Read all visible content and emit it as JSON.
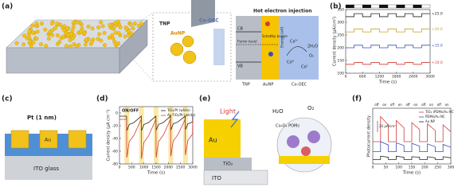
{
  "panels": [
    "(a)",
    "(b)",
    "(c)",
    "(d)",
    "(e)",
    "(f)"
  ],
  "diagram_a": {
    "inset_tnp": "TNP",
    "inset_aunp": "AuNP",
    "inset_cooec": "Co-OEC",
    "title": "Hot electron injection",
    "cb": "CB",
    "fermi": "Fermi level",
    "vb": "VB",
    "schottky": "Schottky barrier",
    "energy": "Energy (eV)",
    "co4": "Coᴵⱽ",
    "co3": "Coᴵᴵᴵ",
    "co2": "Coᴵᴵ",
    "water": "2H₂O",
    "oxygen": "O₂",
    "region_tnp": "TNP",
    "region_aunp": "AuNP",
    "region_cooec": "Co-OEC"
  },
  "diagram_c": {
    "pt": "Pt (1 nm)",
    "au": "Au",
    "ito": "ITO glass"
  },
  "diagram_e": {
    "light": "Light",
    "water": "H₂O",
    "oxygen": "O₂",
    "au": "Au",
    "tio2": "TiO₂",
    "ito": "ITO",
    "catalyst": "Co₄O₄ POMs"
  },
  "chart_data": [
    {
      "type": "line",
      "xlabel": "Time (s)",
      "ylabel": "Current density (μA/cm²)",
      "x": [
        0,
        300,
        300,
        600,
        600,
        900,
        900,
        1200,
        1200,
        1500,
        1500,
        1800,
        1800,
        2100,
        2100,
        2400,
        2400,
        2700,
        2700,
        3000
      ],
      "xlim": [
        0,
        3000
      ],
      "xticks": [
        0,
        600,
        1200,
        1800,
        2400,
        3000
      ],
      "ylim": [
        100,
        350
      ],
      "yticks": [
        100,
        150,
        200,
        250,
        300,
        350
      ],
      "legend": "right",
      "series": [
        {
          "name": "+25.0",
          "color": "#222222",
          "values": [
            322,
            322,
            334,
            334,
            322,
            322,
            334,
            334,
            322,
            322,
            334,
            334,
            322,
            322,
            334,
            334,
            322,
            322,
            334,
            334
          ]
        },
        {
          "name": "+20.0",
          "color": "#c9a227",
          "values": [
            262,
            262,
            274,
            274,
            262,
            262,
            274,
            274,
            262,
            262,
            274,
            274,
            262,
            262,
            274,
            274,
            262,
            262,
            274,
            274
          ]
        },
        {
          "name": "+15.0",
          "color": "#3b4fb8",
          "values": [
            200,
            200,
            210,
            210,
            200,
            200,
            210,
            210,
            200,
            200,
            210,
            210,
            200,
            200,
            210,
            210,
            200,
            200,
            210,
            210
          ]
        },
        {
          "name": "+10.0",
          "color": "#d23b3b",
          "values": [
            135,
            135,
            142,
            142,
            135,
            135,
            142,
            142,
            135,
            135,
            142,
            142,
            135,
            135,
            142,
            142,
            135,
            135,
            142,
            142
          ]
        }
      ]
    },
    {
      "type": "line",
      "xlabel": "Time (s)",
      "ylabel": "Current density (μA cm⁻²)",
      "annotations": [
        "ON/OFF"
      ],
      "x": [
        0,
        290,
        300,
        400,
        590,
        890,
        900,
        1000,
        1190,
        1490,
        1500,
        1600,
        1790,
        2090,
        2100,
        2200,
        2390,
        2690,
        2700,
        2800,
        2990,
        3000
      ],
      "xlim": [
        0,
        3000
      ],
      "xticks": [
        0,
        500,
        1000,
        1500,
        2000,
        2500,
        3000
      ],
      "ylim": [
        -80,
        10
      ],
      "yticks": [
        -80,
        -60,
        -40,
        -20,
        0
      ],
      "legend": "upper right",
      "series": [
        {
          "name": "TiO₂/Pt (white)",
          "color": "#222222",
          "values": [
            -5,
            -5,
            -28,
            -18,
            -15,
            -5,
            -28,
            -18,
            -15,
            -5,
            -27,
            -18,
            -15,
            -5,
            -27,
            -17,
            -14,
            -5,
            -26,
            -17,
            -14,
            -5
          ]
        },
        {
          "name": "Au-TiO₂/Pt (white)",
          "color": "#d23b3b",
          "values": [
            -10,
            -10,
            -70,
            -45,
            -35,
            -10,
            -72,
            -46,
            -36,
            -10,
            -70,
            -45,
            -35,
            -10,
            -68,
            -44,
            -34,
            -10,
            -66,
            -43,
            -33,
            -10
          ]
        }
      ]
    },
    {
      "type": "line",
      "xlabel": "Time (s)",
      "ylabel": "Photocurrent density",
      "annotations": [
        "off",
        "on",
        "off",
        "on",
        "off",
        "on",
        "off",
        "on",
        "off",
        "on"
      ],
      "scale_bar": {
        "value": 20,
        "label": "20 μA/cm²"
      },
      "x": [
        0,
        30,
        30,
        60,
        60,
        90,
        90,
        120,
        120,
        150,
        150,
        180,
        180,
        210,
        210,
        240,
        240,
        270,
        270,
        300
      ],
      "xlim": [
        0,
        300
      ],
      "xticks": [
        0,
        50,
        100,
        150,
        200,
        250,
        300
      ],
      "ylim": [
        0,
        100
      ],
      "legend": "upper right",
      "series": [
        {
          "name": "TiO₂ (PDMs/Au NC)",
          "color": "#d23b3b",
          "values": [
            40,
            40,
            85,
            70,
            40,
            40,
            78,
            65,
            40,
            40,
            74,
            62,
            40,
            40,
            72,
            60,
            40,
            40,
            70,
            58
          ]
        },
        {
          "name": "PDMs/Au NC",
          "color": "#3b4fb8",
          "values": [
            22,
            22,
            40,
            34,
            22,
            22,
            38,
            33,
            22,
            22,
            37,
            32,
            22,
            22,
            36,
            31,
            22,
            22,
            35,
            30
          ]
        },
        {
          "name": "Au NP",
          "color": "#222222",
          "values": [
            8,
            8,
            14,
            12,
            8,
            8,
            14,
            12,
            8,
            8,
            13,
            12,
            8,
            8,
            13,
            11,
            8,
            8,
            13,
            11
          ]
        }
      ]
    }
  ]
}
